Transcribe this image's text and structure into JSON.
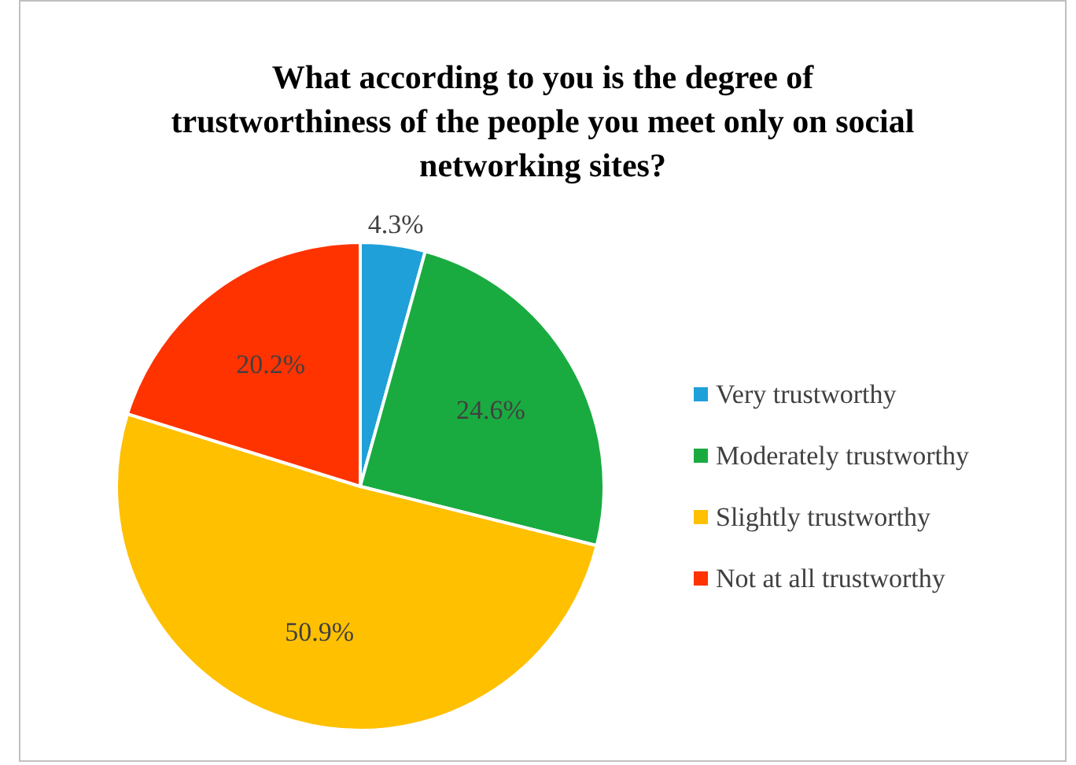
{
  "chart_data": {
    "type": "pie",
    "title": "What according to you is the degree of trustworthiness of the people you meet only on social networking sites?",
    "categories": [
      "Very trustworthy",
      "Moderately trustworthy",
      "Slightly trustworthy",
      "Not at all trustworthy"
    ],
    "values": [
      4.3,
      24.6,
      50.9,
      20.2
    ],
    "colors": [
      "#1fa0d8",
      "#1aab40",
      "#ffc000",
      "#ff3300"
    ],
    "value_labels": [
      "4.3%",
      "24.6%",
      "50.9%",
      "20.2%"
    ],
    "legend": "right"
  }
}
